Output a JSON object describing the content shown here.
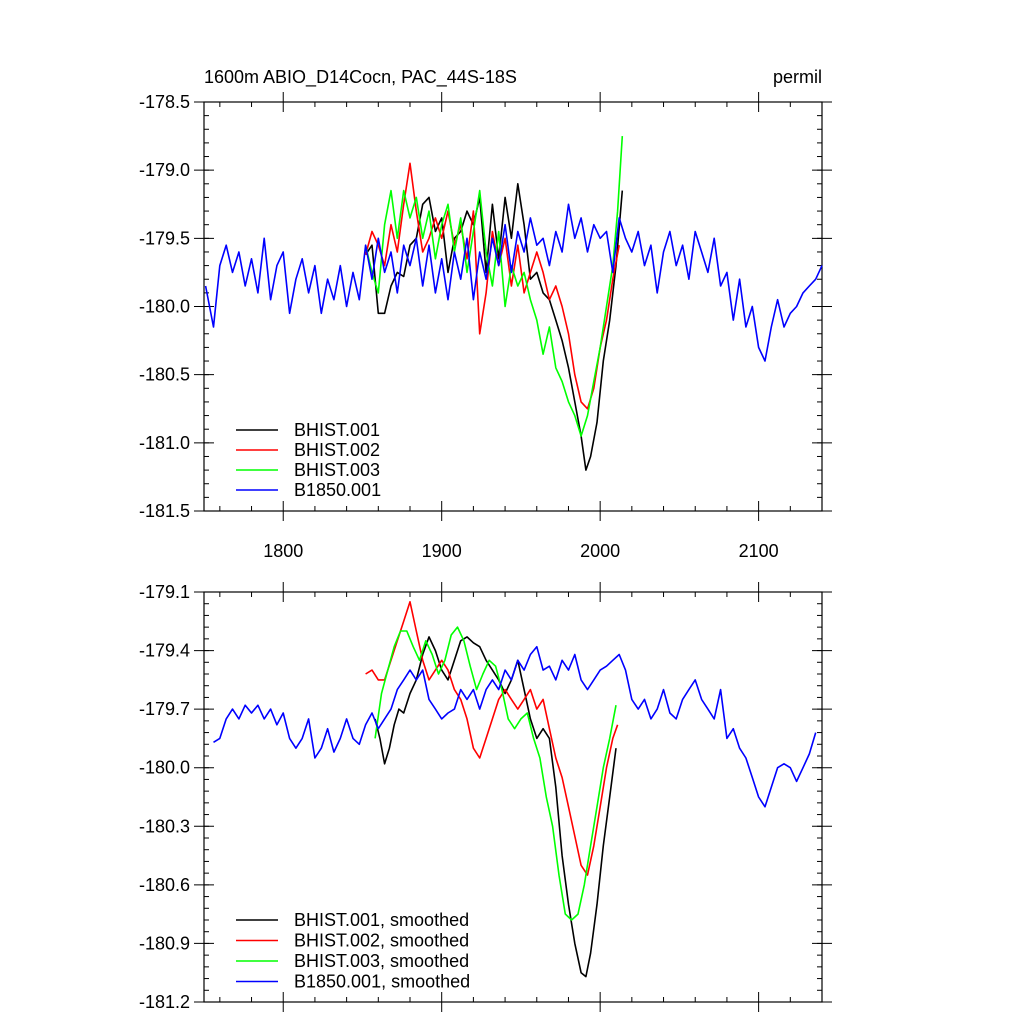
{
  "chart_data": [
    {
      "type": "line",
      "title": "1600m ABIO_D14Cocn, PAC_44S-18S",
      "units": "permil",
      "xlim": [
        1750,
        2140
      ],
      "ylim": [
        -181.5,
        -178.5
      ],
      "xticks": [
        1800,
        1900,
        2000,
        2100
      ],
      "yticks": [
        -178.5,
        -179.0,
        -179.5,
        -180.0,
        -180.5,
        -181.0,
        -181.5
      ],
      "ytick_labels": [
        "-178.5",
        "-179.0",
        "-179.5",
        "-180.0",
        "-180.5",
        "-181.0",
        "-181.5"
      ],
      "legend_position": "bottom-left",
      "series": [
        {
          "name": "BHIST.001",
          "color": "#000000",
          "x": [
            1852,
            1856,
            1860,
            1864,
            1868,
            1872,
            1876,
            1880,
            1884,
            1888,
            1892,
            1896,
            1900,
            1904,
            1908,
            1912,
            1916,
            1920,
            1924,
            1928,
            1932,
            1936,
            1940,
            1944,
            1948,
            1952,
            1956,
            1960,
            1964,
            1968,
            1972,
            1976,
            1980,
            1984,
            1988,
            1991,
            1994,
            1998,
            2002,
            2006,
            2010,
            2014
          ],
          "y": [
            -179.62,
            -179.55,
            -180.05,
            -180.05,
            -179.85,
            -179.75,
            -179.78,
            -179.55,
            -179.5,
            -179.25,
            -179.2,
            -179.45,
            -179.35,
            -179.75,
            -179.5,
            -179.45,
            -179.3,
            -179.4,
            -179.2,
            -179.75,
            -179.25,
            -179.65,
            -179.2,
            -179.5,
            -179.1,
            -179.4,
            -179.8,
            -179.75,
            -179.9,
            -179.95,
            -180.1,
            -180.25,
            -180.45,
            -180.7,
            -180.95,
            -181.2,
            -181.1,
            -180.85,
            -180.4,
            -180.1,
            -179.7,
            -179.15
          ]
        },
        {
          "name": "BHIST.002",
          "color": "#ff0000",
          "x": [
            1852,
            1856,
            1860,
            1864,
            1868,
            1872,
            1876,
            1880,
            1884,
            1888,
            1892,
            1896,
            1900,
            1904,
            1908,
            1912,
            1916,
            1920,
            1924,
            1928,
            1932,
            1936,
            1940,
            1944,
            1948,
            1952,
            1956,
            1960,
            1964,
            1968,
            1972,
            1976,
            1980,
            1984,
            1988,
            1992,
            1996,
            2000,
            2004,
            2008,
            2012
          ],
          "y": [
            -179.62,
            -179.45,
            -179.55,
            -179.7,
            -179.4,
            -179.6,
            -179.25,
            -178.95,
            -179.3,
            -179.6,
            -179.5,
            -179.35,
            -179.5,
            -179.3,
            -179.55,
            -179.4,
            -179.65,
            -179.3,
            -180.2,
            -179.9,
            -179.45,
            -179.7,
            -179.5,
            -179.85,
            -179.55,
            -179.9,
            -179.75,
            -179.6,
            -179.75,
            -179.95,
            -179.85,
            -180.0,
            -180.2,
            -180.5,
            -180.7,
            -180.75,
            -180.6,
            -180.3,
            -180.1,
            -179.8,
            -179.55
          ]
        },
        {
          "name": "BHIST.003",
          "color": "#00ff00",
          "x": [
            1852,
            1856,
            1860,
            1864,
            1868,
            1872,
            1876,
            1880,
            1884,
            1888,
            1892,
            1896,
            1900,
            1904,
            1908,
            1912,
            1916,
            1920,
            1924,
            1928,
            1932,
            1936,
            1940,
            1944,
            1948,
            1952,
            1956,
            1960,
            1964,
            1968,
            1972,
            1976,
            1980,
            1984,
            1988,
            1992,
            1996,
            2000,
            2004,
            2008,
            2011,
            2014
          ],
          "y": [
            -179.55,
            -179.75,
            -179.9,
            -179.4,
            -179.15,
            -179.5,
            -179.15,
            -179.35,
            -179.2,
            -179.5,
            -179.3,
            -179.65,
            -179.4,
            -179.25,
            -179.6,
            -179.35,
            -179.75,
            -179.45,
            -179.15,
            -179.6,
            -179.85,
            -179.45,
            -180.0,
            -179.7,
            -179.85,
            -179.75,
            -179.95,
            -180.1,
            -180.35,
            -180.15,
            -180.45,
            -180.55,
            -180.7,
            -180.8,
            -180.95,
            -180.8,
            -180.55,
            -180.3,
            -180.0,
            -179.7,
            -179.3,
            -178.75
          ]
        },
        {
          "name": "B1850.001",
          "color": "#0000ff",
          "x": [
            1751,
            1756,
            1760,
            1764,
            1768,
            1772,
            1776,
            1780,
            1784,
            1788,
            1792,
            1796,
            1800,
            1804,
            1808,
            1812,
            1816,
            1820,
            1824,
            1828,
            1832,
            1836,
            1840,
            1844,
            1848,
            1852,
            1856,
            1860,
            1864,
            1868,
            1872,
            1876,
            1880,
            1884,
            1888,
            1892,
            1896,
            1900,
            1904,
            1908,
            1912,
            1916,
            1920,
            1924,
            1928,
            1932,
            1936,
            1940,
            1944,
            1948,
            1952,
            1956,
            1960,
            1964,
            1968,
            1972,
            1976,
            1980,
            1984,
            1988,
            1992,
            1996,
            2000,
            2004,
            2008,
            2012,
            2016,
            2020,
            2024,
            2028,
            2032,
            2036,
            2040,
            2044,
            2048,
            2052,
            2056,
            2060,
            2064,
            2068,
            2072,
            2076,
            2080,
            2084,
            2088,
            2092,
            2096,
            2100,
            2104,
            2108,
            2112,
            2116,
            2120,
            2124,
            2128,
            2132,
            2136,
            2140
          ],
          "y": [
            -179.85,
            -180.15,
            -179.7,
            -179.55,
            -179.75,
            -179.6,
            -179.85,
            -179.65,
            -179.9,
            -179.5,
            -179.95,
            -179.7,
            -179.6,
            -180.05,
            -179.8,
            -179.65,
            -179.9,
            -179.7,
            -180.05,
            -179.8,
            -179.95,
            -179.7,
            -180.0,
            -179.75,
            -179.95,
            -179.55,
            -179.8,
            -179.5,
            -179.75,
            -179.6,
            -179.9,
            -179.55,
            -179.7,
            -179.5,
            -179.85,
            -179.55,
            -179.9,
            -179.65,
            -179.95,
            -179.6,
            -179.8,
            -179.5,
            -179.95,
            -179.6,
            -179.8,
            -179.5,
            -179.7,
            -179.4,
            -179.75,
            -179.45,
            -179.6,
            -179.35,
            -179.55,
            -179.5,
            -179.7,
            -179.45,
            -179.6,
            -179.25,
            -179.5,
            -179.35,
            -179.6,
            -179.4,
            -179.5,
            -179.45,
            -179.75,
            -179.35,
            -179.5,
            -179.6,
            -179.45,
            -179.7,
            -179.55,
            -179.9,
            -179.6,
            -179.45,
            -179.7,
            -179.55,
            -179.8,
            -179.45,
            -179.6,
            -179.75,
            -179.5,
            -179.85,
            -179.75,
            -180.1,
            -179.8,
            -180.15,
            -180.0,
            -180.3,
            -180.4,
            -180.15,
            -179.95,
            -180.15,
            -180.05,
            -180.0,
            -179.9,
            -179.85,
            -179.8,
            -179.7
          ]
        }
      ]
    },
    {
      "type": "line",
      "xlim": [
        1750,
        2140
      ],
      "ylim": [
        -181.2,
        -179.1
      ],
      "xticks": [
        1800,
        1900,
        2000,
        2100
      ],
      "yticks": [
        -179.1,
        -179.4,
        -179.7,
        -180.0,
        -180.3,
        -180.6,
        -180.9,
        -181.2
      ],
      "ytick_labels": [
        "-179.1",
        "-179.4",
        "-179.7",
        "-180.0",
        "-180.3",
        "-180.6",
        "-180.9",
        "-181.2"
      ],
      "legend_position": "bottom-left",
      "series": [
        {
          "name": "BHIST.001, smoothed",
          "color": "#000000",
          "x": [
            1858,
            1861,
            1864,
            1867,
            1870,
            1873,
            1876,
            1880,
            1884,
            1888,
            1892,
            1896,
            1900,
            1904,
            1908,
            1912,
            1916,
            1920,
            1924,
            1928,
            1932,
            1936,
            1940,
            1944,
            1948,
            1952,
            1956,
            1960,
            1964,
            1968,
            1972,
            1976,
            1980,
            1984,
            1988,
            1991,
            1994,
            1998,
            2002,
            2006,
            2010
          ],
          "y": [
            -179.75,
            -179.85,
            -179.98,
            -179.9,
            -179.78,
            -179.7,
            -179.72,
            -179.62,
            -179.55,
            -179.42,
            -179.33,
            -179.4,
            -179.5,
            -179.55,
            -179.45,
            -179.35,
            -179.33,
            -179.36,
            -179.38,
            -179.45,
            -179.5,
            -179.55,
            -179.62,
            -179.55,
            -179.45,
            -179.6,
            -179.75,
            -179.85,
            -179.8,
            -179.85,
            -180.1,
            -180.45,
            -180.7,
            -180.9,
            -181.05,
            -181.07,
            -180.95,
            -180.7,
            -180.4,
            -180.15,
            -179.9
          ]
        },
        {
          "name": "BHIST.002, smoothed",
          "color": "#ff0000",
          "x": [
            1852,
            1856,
            1860,
            1864,
            1868,
            1872,
            1876,
            1880,
            1884,
            1888,
            1892,
            1896,
            1900,
            1904,
            1908,
            1912,
            1916,
            1920,
            1924,
            1928,
            1932,
            1936,
            1940,
            1944,
            1948,
            1952,
            1956,
            1960,
            1964,
            1968,
            1972,
            1976,
            1980,
            1984,
            1988,
            1992,
            1996,
            2000,
            2004,
            2008,
            2011
          ],
          "y": [
            -179.52,
            -179.5,
            -179.55,
            -179.55,
            -179.45,
            -179.35,
            -179.25,
            -179.15,
            -179.3,
            -179.45,
            -179.55,
            -179.5,
            -179.45,
            -179.5,
            -179.6,
            -179.65,
            -179.75,
            -179.9,
            -179.95,
            -179.85,
            -179.75,
            -179.65,
            -179.6,
            -179.65,
            -179.7,
            -179.65,
            -179.6,
            -179.7,
            -179.65,
            -179.8,
            -179.95,
            -180.05,
            -180.2,
            -180.35,
            -180.5,
            -180.55,
            -180.4,
            -180.2,
            -180.0,
            -179.85,
            -179.78
          ]
        },
        {
          "name": "BHIST.003, smoothed",
          "color": "#00ff00",
          "x": [
            1858,
            1862,
            1866,
            1870,
            1874,
            1878,
            1882,
            1886,
            1890,
            1894,
            1898,
            1902,
            1906,
            1910,
            1914,
            1918,
            1922,
            1926,
            1930,
            1934,
            1938,
            1942,
            1946,
            1950,
            1954,
            1958,
            1962,
            1966,
            1970,
            1974,
            1978,
            1982,
            1986,
            1990,
            1994,
            1998,
            2002,
            2006,
            2010
          ],
          "y": [
            -179.85,
            -179.62,
            -179.5,
            -179.38,
            -179.3,
            -179.3,
            -179.38,
            -179.45,
            -179.35,
            -179.42,
            -179.52,
            -179.45,
            -179.32,
            -179.28,
            -179.35,
            -179.48,
            -179.6,
            -179.52,
            -179.45,
            -179.48,
            -179.6,
            -179.75,
            -179.8,
            -179.75,
            -179.72,
            -179.85,
            -179.95,
            -180.15,
            -180.3,
            -180.55,
            -180.75,
            -180.78,
            -180.75,
            -180.6,
            -180.4,
            -180.2,
            -180.0,
            -179.85,
            -179.68
          ]
        },
        {
          "name": "B1850.001, smoothed",
          "color": "#0000ff",
          "x": [
            1756,
            1760,
            1764,
            1768,
            1772,
            1776,
            1780,
            1784,
            1788,
            1792,
            1796,
            1800,
            1804,
            1808,
            1812,
            1816,
            1820,
            1824,
            1828,
            1832,
            1836,
            1840,
            1844,
            1848,
            1852,
            1856,
            1860,
            1864,
            1868,
            1872,
            1876,
            1880,
            1884,
            1888,
            1892,
            1896,
            1900,
            1904,
            1908,
            1912,
            1916,
            1920,
            1924,
            1928,
            1932,
            1936,
            1940,
            1944,
            1948,
            1952,
            1956,
            1960,
            1964,
            1968,
            1972,
            1976,
            1980,
            1984,
            1988,
            1992,
            1996,
            2000,
            2004,
            2008,
            2012,
            2016,
            2020,
            2024,
            2028,
            2032,
            2036,
            2040,
            2044,
            2048,
            2052,
            2056,
            2060,
            2064,
            2068,
            2072,
            2076,
            2080,
            2084,
            2088,
            2092,
            2096,
            2100,
            2104,
            2108,
            2112,
            2116,
            2120,
            2124,
            2128,
            2132,
            2136
          ],
          "y": [
            -179.87,
            -179.85,
            -179.75,
            -179.7,
            -179.75,
            -179.68,
            -179.72,
            -179.68,
            -179.75,
            -179.7,
            -179.78,
            -179.72,
            -179.85,
            -179.9,
            -179.85,
            -179.75,
            -179.95,
            -179.9,
            -179.8,
            -179.92,
            -179.85,
            -179.75,
            -179.85,
            -179.88,
            -179.78,
            -179.72,
            -179.8,
            -179.75,
            -179.7,
            -179.6,
            -179.55,
            -179.5,
            -179.55,
            -179.5,
            -179.65,
            -179.7,
            -179.75,
            -179.72,
            -179.7,
            -179.6,
            -179.65,
            -179.6,
            -179.7,
            -179.6,
            -179.55,
            -179.6,
            -179.5,
            -179.55,
            -179.45,
            -179.5,
            -179.42,
            -179.38,
            -179.5,
            -179.48,
            -179.55,
            -179.45,
            -179.5,
            -179.42,
            -179.55,
            -179.6,
            -179.55,
            -179.5,
            -179.48,
            -179.45,
            -179.42,
            -179.5,
            -179.65,
            -179.7,
            -179.65,
            -179.75,
            -179.7,
            -179.6,
            -179.72,
            -179.75,
            -179.65,
            -179.6,
            -179.55,
            -179.65,
            -179.7,
            -179.75,
            -179.6,
            -179.85,
            -179.8,
            -179.9,
            -179.95,
            -180.05,
            -180.15,
            -180.2,
            -180.1,
            -180.0,
            -179.98,
            -180.0,
            -180.07,
            -180.0,
            -179.93,
            -179.82
          ]
        }
      ]
    }
  ]
}
